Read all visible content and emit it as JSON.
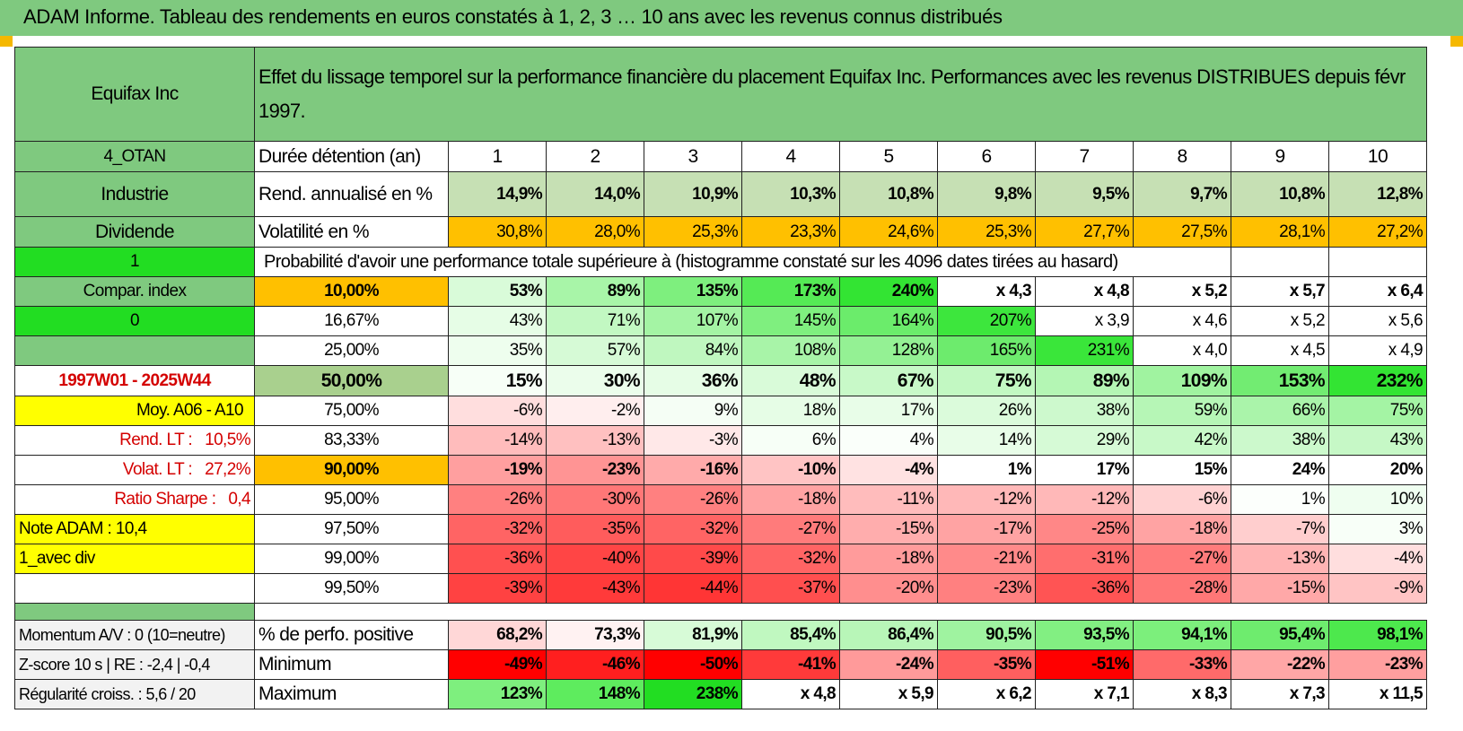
{
  "title": "ADAM Informe. Tableau des rendements en euros constatés à 1, 2, 3 … 10 ans avec les revenus connus distribués",
  "header": {
    "company": "Equifax Inc",
    "description": "Effet du lissage temporel sur la performance financière du placement Equifax Inc. Performances avec les revenus DISTRIBUES depuis févr 1997."
  },
  "side": {
    "code": "4_OTAN",
    "sector": "Industrie",
    "type": "Dividende",
    "flag1": "1",
    "compar_label": "Compar. index",
    "flag2": "0",
    "blank": "",
    "period": "1997W01 - 2025W44",
    "moy": "Moy. A06 - A10",
    "rend_lt_label": "Rend. LT :",
    "rend_lt_value": "10,5%",
    "volat_lt_label": "Volat. LT :",
    "volat_lt_value": "27,2%",
    "sharpe_label": "Ratio Sharpe :",
    "sharpe_value": "0,4",
    "note": "Note ADAM : 10,4",
    "avec_div": "1_avec div",
    "empty": ""
  },
  "rows_top": {
    "duration_label": "Durée détention (an)",
    "years": [
      "1",
      "2",
      "3",
      "4",
      "5",
      "6",
      "7",
      "8",
      "9",
      "10"
    ],
    "rend_label": "Rend. annualisé en %",
    "rend": [
      "14,9%",
      "14,0%",
      "10,9%",
      "10,3%",
      "10,8%",
      "9,8%",
      "9,5%",
      "9,7%",
      "10,8%",
      "12,8%"
    ],
    "vol_label": "Volatilité en %",
    "vol": [
      "30,8%",
      "28,0%",
      "25,3%",
      "23,3%",
      "24,6%",
      "25,3%",
      "27,7%",
      "27,5%",
      "28,1%",
      "27,2%"
    ]
  },
  "prob_title": "Probabilité d'avoir une performance totale supérieure à (histogramme constaté sur les 4096 dates tirées au hasard)",
  "prob_rows": [
    {
      "p": "10,00%",
      "v": [
        "53%",
        "89%",
        "135%",
        "173%",
        "240%",
        "x 4,3",
        "x 4,8",
        "x 5,2",
        "x 5,7",
        "x 6,4"
      ]
    },
    {
      "p": "16,67%",
      "v": [
        "43%",
        "71%",
        "107%",
        "145%",
        "164%",
        "207%",
        "x 3,9",
        "x 4,6",
        "x 5,2",
        "x 5,6"
      ]
    },
    {
      "p": "25,00%",
      "v": [
        "35%",
        "57%",
        "84%",
        "108%",
        "128%",
        "165%",
        "231%",
        "x 4,0",
        "x 4,5",
        "x 4,9"
      ]
    },
    {
      "p": "50,00%",
      "v": [
        "15%",
        "30%",
        "36%",
        "48%",
        "67%",
        "75%",
        "89%",
        "109%",
        "153%",
        "232%"
      ]
    },
    {
      "p": "75,00%",
      "v": [
        "-6%",
        "-2%",
        "9%",
        "18%",
        "17%",
        "26%",
        "38%",
        "59%",
        "66%",
        "75%"
      ]
    },
    {
      "p": "83,33%",
      "v": [
        "-14%",
        "-13%",
        "-3%",
        "6%",
        "4%",
        "14%",
        "29%",
        "42%",
        "38%",
        "43%"
      ]
    },
    {
      "p": "90,00%",
      "v": [
        "-19%",
        "-23%",
        "-16%",
        "-10%",
        "-4%",
        "1%",
        "17%",
        "15%",
        "24%",
        "20%"
      ]
    },
    {
      "p": "95,00%",
      "v": [
        "-26%",
        "-30%",
        "-26%",
        "-18%",
        "-11%",
        "-12%",
        "-12%",
        "-6%",
        "1%",
        "10%"
      ]
    },
    {
      "p": "97,50%",
      "v": [
        "-32%",
        "-35%",
        "-32%",
        "-27%",
        "-15%",
        "-17%",
        "-25%",
        "-18%",
        "-7%",
        "3%"
      ]
    },
    {
      "p": "99,00%",
      "v": [
        "-36%",
        "-40%",
        "-39%",
        "-32%",
        "-18%",
        "-21%",
        "-31%",
        "-27%",
        "-13%",
        "-4%"
      ]
    },
    {
      "p": "99,50%",
      "v": [
        "-39%",
        "-43%",
        "-44%",
        "-37%",
        "-20%",
        "-23%",
        "-36%",
        "-28%",
        "-15%",
        "-9%"
      ]
    }
  ],
  "bottom": [
    {
      "side": "Momentum A/V : 0 (10=neutre)",
      "label": "% de perfo. positive",
      "v": [
        "68,2%",
        "73,3%",
        "81,9%",
        "85,4%",
        "86,4%",
        "90,5%",
        "93,5%",
        "94,1%",
        "95,4%",
        "98,1%"
      ]
    },
    {
      "side": "Z-score 10 s | RE : -2,4 | -0,4",
      "label": "Minimum",
      "v": [
        "-49%",
        "-46%",
        "-50%",
        "-41%",
        "-24%",
        "-35%",
        "-51%",
        "-33%",
        "-22%",
        "-23%"
      ]
    },
    {
      "side": "Régularité croiss. : 5,6 / 20",
      "label": "Maximum",
      "v": [
        "123%",
        "148%",
        "238%",
        "x 4,8",
        "x 5,9",
        "x 6,2",
        "x 7,1",
        "x 8,3",
        "x 7,3",
        "x 11,5"
      ]
    }
  ],
  "colors": {
    "header_green": "#7fc97f",
    "side_green": "#7fc97f",
    "bright_green": "#22dd22",
    "yellow": "#ffff00",
    "orange": "#ffc000",
    "rend_green": "#c6e0b4",
    "median_green": "#a9d08e",
    "red_text": "#d40000"
  },
  "cell_colors": {
    "rend": [
      "#c6e0b4",
      "#c6e0b4",
      "#c6e0b4",
      "#c6e0b4",
      "#c6e0b4",
      "#c6e0b4",
      "#c6e0b4",
      "#c6e0b4",
      "#c6e0b4",
      "#c6e0b4"
    ],
    "vol": [
      "#ffc000",
      "#ffc000",
      "#ffc000",
      "#ffc000",
      "#ffc000",
      "#ffc000",
      "#ffc000",
      "#ffc000",
      "#ffc000",
      "#ffc000"
    ],
    "prob": [
      [
        "#d9fbd9",
        "#a8f5a8",
        "#7eef7e",
        "#55ea55",
        "#33e433",
        "#ffffff",
        "#ffffff",
        "#ffffff",
        "#ffffff",
        "#ffffff"
      ],
      [
        "#e6fde6",
        "#c2f8c2",
        "#a4f4a4",
        "#7fef7f",
        "#6bec6b",
        "#3de63d",
        "#ffffff",
        "#ffffff",
        "#ffffff",
        "#ffffff"
      ],
      [
        "#eefeee",
        "#d6fad6",
        "#bff7bf",
        "#a8f4a8",
        "#94f194",
        "#6deb6d",
        "#3ae63a",
        "#ffffff",
        "#ffffff",
        "#ffffff"
      ],
      [
        "#f7fff7",
        "#ebfdeb",
        "#e6fde6",
        "#d9fbd9",
        "#c8f9c8",
        "#c2f8c2",
        "#b4f6b4",
        "#a0f3a0",
        "#72ec72",
        "#33e433"
      ],
      [
        "#ffdede",
        "#ffeeee",
        "#f5fef5",
        "#e6fde6",
        "#e8fde8",
        "#dbfbdb",
        "#cdf9cd",
        "#b6f6b6",
        "#aaf4aa",
        "#a4f4a4"
      ],
      [
        "#ffbcbc",
        "#ffc0c0",
        "#ffe8e8",
        "#f7fff7",
        "#fafffa",
        "#e8fde8",
        "#d6fad6",
        "#c8f9c8",
        "#ccf9cc",
        "#c6f8c6"
      ],
      [
        "#ff9f9f",
        "#ff9494",
        "#ffaaaa",
        "#ffc4c4",
        "#ffe2e2",
        "#ffffff",
        "#ffffff",
        "#ffffff",
        "#ffffff",
        "#ffffff"
      ],
      [
        "#ff8080",
        "#ff7777",
        "#ff8080",
        "#ffa3a3",
        "#ffbcbc",
        "#ffb8b8",
        "#ffb8b8",
        "#ffd2d2",
        "#fcfffc",
        "#effef0"
      ],
      [
        "#ff6464",
        "#ff5c5c",
        "#ff6464",
        "#ff7b7b",
        "#ffadad",
        "#ffa3a3",
        "#ff8787",
        "#ffa3a3",
        "#ffcece",
        "#f8fff8"
      ],
      [
        "#ff5050",
        "#ff4545",
        "#ff4a4a",
        "#ff6464",
        "#ff9b9b",
        "#ff8a8a",
        "#ff6e6e",
        "#ff7b7b",
        "#ffb4b4",
        "#ffdede"
      ],
      [
        "#ff4242",
        "#ff3a3a",
        "#ff3535",
        "#ff4f4f",
        "#ff8e8e",
        "#ff8080",
        "#ff5454",
        "#ff7777",
        "#ffa8a8",
        "#ffc4c4"
      ]
    ],
    "bottom": [
      [
        "#ffd7d7",
        "#fff2f2",
        "#d7fbd7",
        "#c0f8c0",
        "#b8f6b8",
        "#9ff3a0",
        "#82ef82",
        "#7cef7c",
        "#6eec6e",
        "#4de84d"
      ],
      [
        "#ff0000",
        "#ff1f1f",
        "#ff0000",
        "#ff3a3a",
        "#ff9a9a",
        "#ff5f5f",
        "#ff0000",
        "#ff6a6a",
        "#ffa6a6",
        "#ff9f9f"
      ],
      [
        "#7eef7e",
        "#5eec5e",
        "#22dd22",
        "#ffffff",
        "#ffffff",
        "#ffffff",
        "#ffffff",
        "#ffffff",
        "#ffffff",
        "#ffffff"
      ]
    ]
  }
}
